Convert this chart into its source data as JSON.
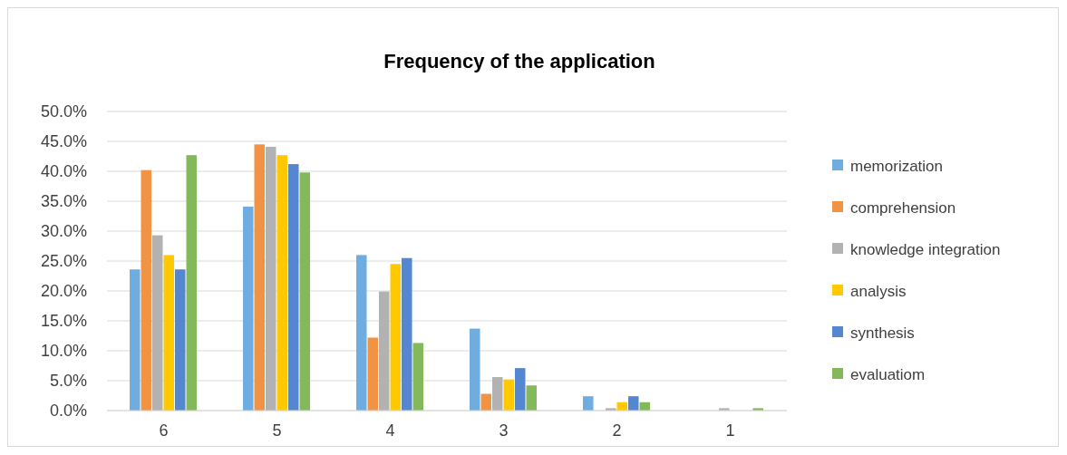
{
  "chart_data": {
    "type": "bar",
    "title": "Frequency of the application",
    "categories": [
      "6",
      "5",
      "4",
      "3",
      "2",
      "1"
    ],
    "series": [
      {
        "name": "memorization",
        "color": "#6face0",
        "values": [
          23.6,
          34.1,
          26.0,
          13.7,
          2.4,
          0
        ]
      },
      {
        "name": "comprehension",
        "color": "#f29343",
        "values": [
          40.2,
          44.5,
          12.2,
          2.8,
          0,
          0
        ]
      },
      {
        "name": "knowledge integration",
        "color": "#b2b2b2",
        "values": [
          29.3,
          44.1,
          19.9,
          5.6,
          0.4,
          0.4
        ]
      },
      {
        "name": "analysis",
        "color": "#ffc800",
        "values": [
          26.0,
          42.7,
          24.5,
          5.2,
          1.4,
          0
        ]
      },
      {
        "name": "synthesis",
        "color": "#5587d0",
        "values": [
          23.6,
          41.2,
          25.5,
          7.1,
          2.4,
          0
        ]
      },
      {
        "name": "evaluatiom",
        "color": "#83b85b",
        "values": [
          42.7,
          39.8,
          11.3,
          4.2,
          1.4,
          0.4
        ]
      }
    ],
    "ylim": [
      0,
      50
    ],
    "yticks": [
      {
        "value": 0,
        "label": "0.0%"
      },
      {
        "value": 5,
        "label": "5.0%"
      },
      {
        "value": 10,
        "label": "10.0%"
      },
      {
        "value": 15,
        "label": "15.0%"
      },
      {
        "value": 20,
        "label": "20.0%"
      },
      {
        "value": 25,
        "label": "25.0%"
      },
      {
        "value": 30,
        "label": "30.0%"
      },
      {
        "value": 35,
        "label": "35.0%"
      },
      {
        "value": 40,
        "label": "40.0%"
      },
      {
        "value": 45,
        "label": "45.0%"
      },
      {
        "value": 50,
        "label": "50.0%"
      }
    ],
    "grid": "y",
    "legend": "right"
  }
}
